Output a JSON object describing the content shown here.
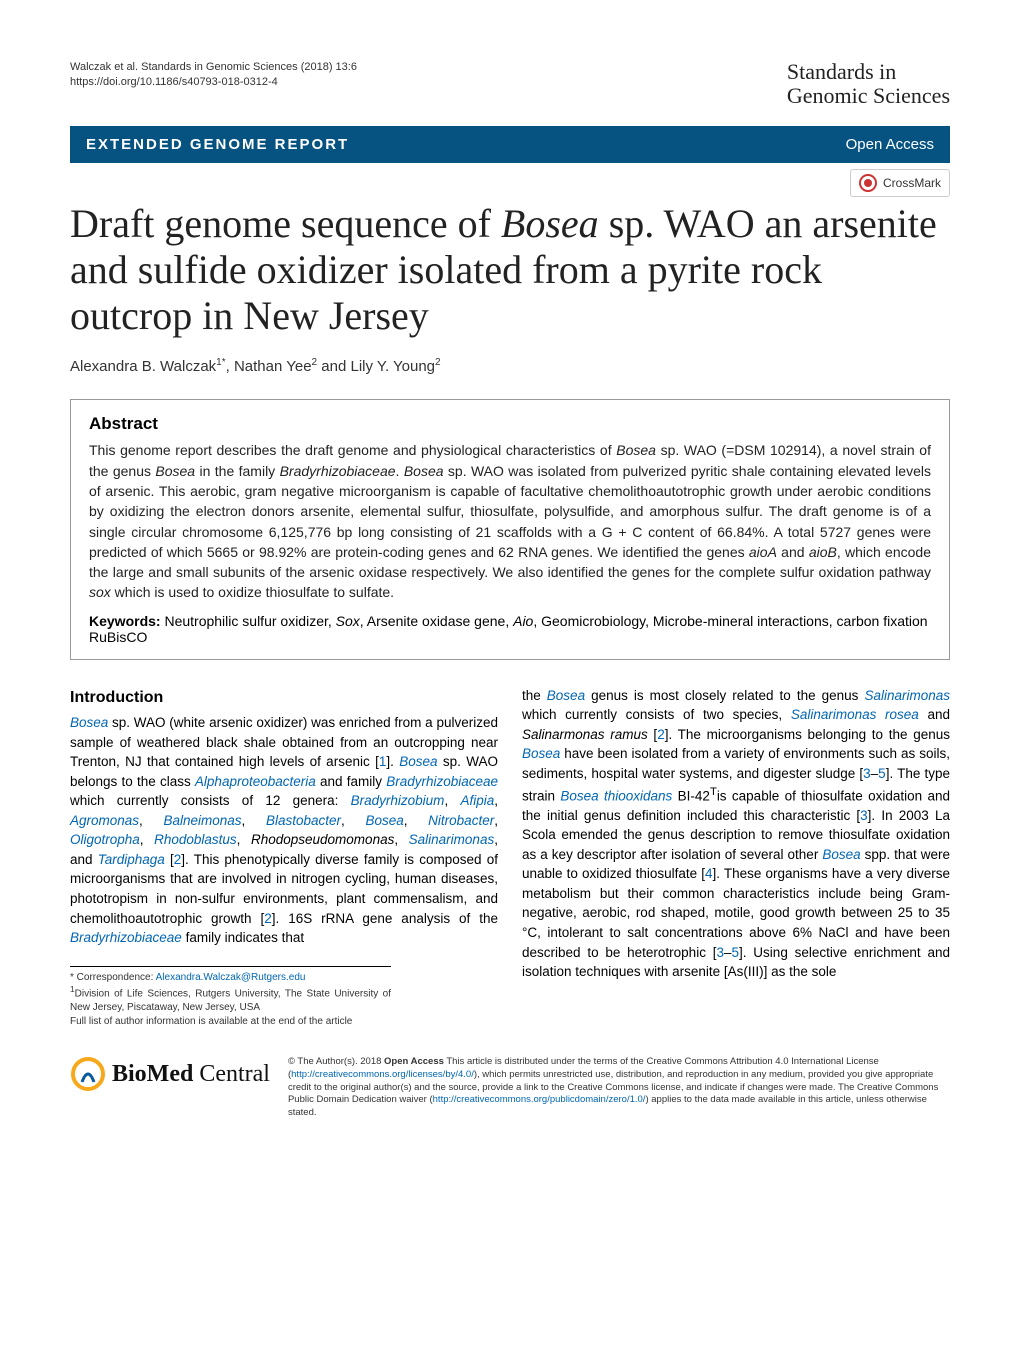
{
  "meta": {
    "citation": "Walczak et al. Standards in Genomic Sciences (2018) 13:6",
    "doi": "https://doi.org/10.1186/s40793-018-0312-4",
    "journal_line1": "Standards in",
    "journal_line2": "Genomic Sciences"
  },
  "banner": {
    "left": "EXTENDED GENOME REPORT",
    "right": "Open Access"
  },
  "crossmark": {
    "label": "CrossMark"
  },
  "title": {
    "pre": "Draft genome sequence of ",
    "italic": "Bosea",
    "post": " sp. WAO an arsenite and sulfide oxidizer isolated from a pyrite rock outcrop in New Jersey"
  },
  "authors": "Alexandra B. Walczak1*, Nathan Yee2 and Lily Y. Young2",
  "abstract": {
    "heading": "Abstract",
    "body": "This genome report describes the draft genome and physiological characteristics of Bosea sp. WAO (=DSM 102914), a novel strain of the genus Bosea in the family Bradyrhizobiaceae. Bosea sp. WAO was isolated from pulverized pyritic shale containing elevated levels of arsenic. This aerobic, gram negative microorganism is capable of facultative chemolithoautotrophic growth under aerobic conditions by oxidizing the electron donors arsenite, elemental sulfur, thiosulfate, polysulfide, and amorphous sulfur. The draft genome is of a single circular chromosome 6,125,776 bp long consisting of 21 scaffolds with a G + C content of 66.84%. A total 5727 genes were predicted of which 5665 or 98.92% are protein-coding genes and 62 RNA genes. We identified the genes aioA and aioB, which encode the large and small subunits of the arsenic oxidase respectively. We also identified the genes for the complete sulfur oxidation pathway sox which is used to oxidize thiosulfate to sulfate.",
    "keywords_label": "Keywords:",
    "keywords_text": " Neutrophilic sulfur oxidizer, Sox, Arsenite oxidase gene, Aio, Geomicrobiology, Microbe-mineral interactions, carbon fixation RuBisCO"
  },
  "intro": {
    "heading": "Introduction",
    "left_html": "<span class='link italic'>Bosea</span> sp. WAO (white arsenic oxidizer) was enriched from a pulverized sample of weathered black shale obtained from an outcropping near Trenton, NJ that contained high levels of arsenic [<span class='ref-br'>1</span>]. <span class='link italic'>Bosea</span> sp. WAO belongs to the class <span class='link italic'>Alphaproteobacteria</span> and family <span class='link italic'>Bradyrhizobiaceae</span> which currently consists of 12 genera: <span class='link italic'>Bradyrhizobium</span>, <span class='link italic'>Afipia</span>, <span class='link italic'>Agromonas</span>, <span class='link italic'>Balneimonas</span>, <span class='link italic'>Blastobacter</span>, <span class='link italic'>Bosea</span>, <span class='link italic'>Nitrobacter</span>, <span class='link italic'>Oligotropha</span>, <span class='link italic'>Rhodoblastus</span>, <span class='italic'>Rhodopseudomomonas</span>, <span class='link italic'>Salinarimonas</span>, and <span class='link italic'>Tardiphaga</span> [<span class='ref-br'>2</span>]. This phenotypically diverse family is composed of microorganisms that are involved in nitrogen cycling, human diseases, phototropism in non-sulfur environments, plant commensalism, and chemolithoautotrophic growth [<span class='ref-br'>2</span>]. 16S rRNA gene analysis of the <span class='link italic'>Bradyrhizobiaceae</span> family indicates that",
    "right_html": "the <span class='link italic'>Bosea</span> genus is most closely related to the genus <span class='link italic'>Salinarimonas</span> which currently consists of two species, <span class='link italic'>Salinarimonas rosea</span> and <span class='italic'>Salinarmonas ramus</span> [<span class='ref-br'>2</span>]. The microorganisms belonging to the genus <span class='link italic'>Bosea</span> have been isolated from a variety of environments such as soils, sediments, hospital water systems, and digester sludge [<span class='ref-br'>3</span>–<span class='ref-br'>5</span>]. The type strain <span class='link italic'>Bosea thiooxidans</span> BI-42<sup>T</sup>is capable of thiosulfate oxidation and the initial genus definition included this characteristic [<span class='ref-br'>3</span>]. In 2003 La Scola emended the genus description to remove thiosulfate oxidation as a key descriptor after isolation of several other <span class='link italic'>Bosea</span> spp. that were unable to oxidized thiosulfate [<span class='ref-br'>4</span>]. These organisms have a very diverse metabolism but their common characteristics include being Gram-negative, aerobic, rod shaped, motile, good growth between 25 to 35 °C, intolerant to salt concentrations above 6% NaCl and have been described to be heterotrophic [<span class='ref-br'>3</span>–<span class='ref-br'>5</span>]. Using selective enrichment and isolation techniques with arsenite [As(III)] as the sole"
  },
  "correspondence": {
    "star": "* Correspondence: ",
    "email": "Alexandra.Walczak@Rutgers.edu",
    "aff": "1Division of Life Sciences, Rutgers University, The State University of New Jersey, Piscataway, New Jersey, USA",
    "full_list": "Full list of author information is available at the end of the article"
  },
  "footer": {
    "biomed_a": "BioMed",
    "biomed_b": " Central",
    "license": "© The Author(s). 2018 <b>Open Access</b> This article is distributed under the terms of the Creative Commons Attribution 4.0 International License (<span class='link'>http://creativecommons.org/licenses/by/4.0/</span>), which permits unrestricted use, distribution, and reproduction in any medium, provided you give appropriate credit to the original author(s) and the source, provide a link to the Creative Commons license, and indicate if changes were made. The Creative Commons Public Domain Dedication waiver (<span class='link'>http://creativecommons.org/publicdomain/zero/1.0/</span>) applies to the data made available in this article, unless otherwise stated."
  },
  "colors": {
    "banner_bg": "#065381",
    "link": "#0066b3"
  }
}
